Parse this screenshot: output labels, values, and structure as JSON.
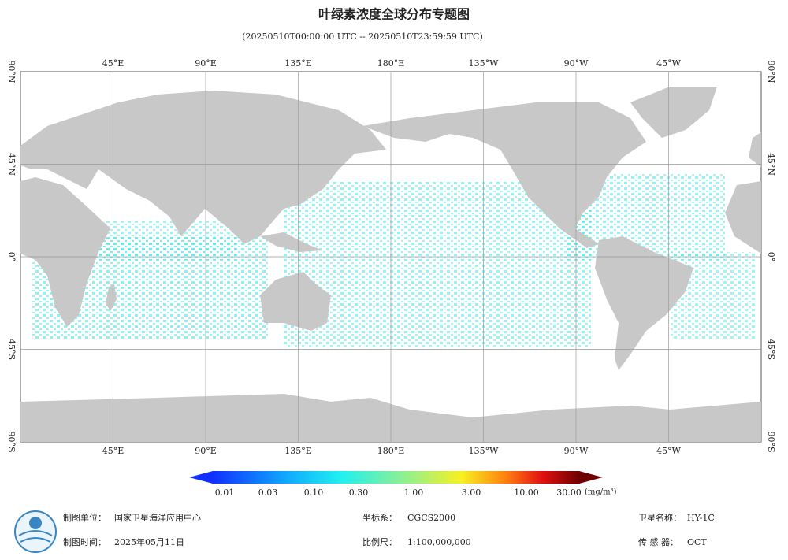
{
  "header": {
    "title": "叶绿素浓度全球分布专题图",
    "subtitle": "(20250510T00:00:00 UTC -- 20250510T23:59:59 UTC)"
  },
  "map": {
    "lon_labels": [
      "45°E",
      "90°E",
      "135°E",
      "180°E",
      "135°W",
      "90°W",
      "45°W"
    ],
    "lat_labels": [
      "90°N",
      "45°N",
      "0°",
      "45°S",
      "90°S"
    ]
  },
  "colorbar": {
    "ticks": [
      "0.01",
      "0.03",
      "0.10",
      "0.30",
      "1.00",
      "3.00",
      "10.00",
      "30.00"
    ],
    "unit": "(mg/m³)"
  },
  "footer": {
    "org_label": "制图单位：",
    "org": "国家卫星海洋应用中心",
    "date_label": "制图时间：",
    "date": "2025年05月11日",
    "crs_label": "坐标系：",
    "crs": "CGCS2000",
    "scale_label": "比例尺：",
    "scale": "1:100,000,000",
    "satellite_label": "卫星名称：",
    "satellite": "HY-1C",
    "sensor_label": "传 感 器：",
    "sensor": "OCT"
  }
}
